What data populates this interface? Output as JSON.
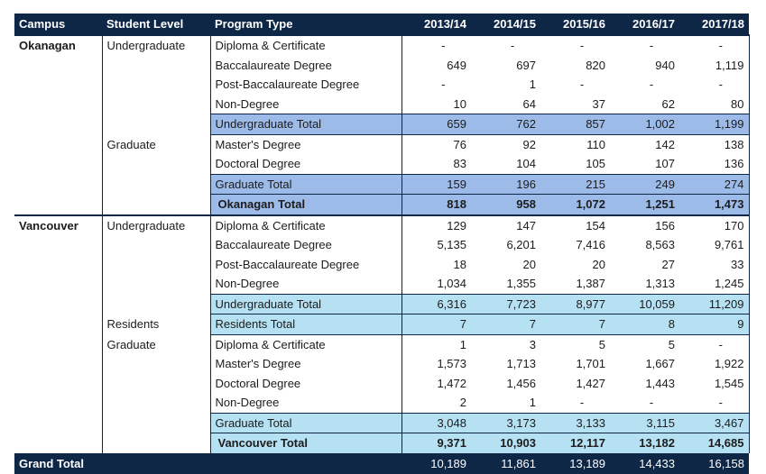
{
  "headers": [
    "Campus",
    "Student Level",
    "Program Type",
    "2013/14",
    "2014/15",
    "2015/16",
    "2016/17",
    "2017/18"
  ],
  "rows": [
    {
      "campus": "Okanagan",
      "level": "Undergraduate",
      "program": "Diploma & Certificate",
      "values": [
        "-",
        "-",
        "-",
        "-",
        "-"
      ],
      "kind": "data",
      "group": "ok",
      "campusStart": true
    },
    {
      "campus": "",
      "level": "",
      "program": "Baccalaureate Degree",
      "values": [
        "649",
        "697",
        "820",
        "940",
        "1,119"
      ],
      "kind": "data",
      "group": "ok"
    },
    {
      "campus": "",
      "level": "",
      "program": "Post-Baccalaureate Degree",
      "values": [
        "-",
        "1",
        "-",
        "-",
        "-"
      ],
      "kind": "data",
      "group": "ok"
    },
    {
      "campus": "",
      "level": "",
      "program": "Non-Degree",
      "values": [
        "10",
        "64",
        "37",
        "62",
        "80"
      ],
      "kind": "data",
      "group": "ok"
    },
    {
      "campus": "",
      "level": "",
      "program": "Undergraduate Total",
      "values": [
        "659",
        "762",
        "857",
        "1,002",
        "1,199"
      ],
      "kind": "subtotal",
      "group": "ok"
    },
    {
      "campus": "",
      "level": "Graduate",
      "program": "Master's Degree",
      "values": [
        "76",
        "92",
        "110",
        "142",
        "138"
      ],
      "kind": "data",
      "group": "ok"
    },
    {
      "campus": "",
      "level": "",
      "program": "Doctoral Degree",
      "values": [
        "83",
        "104",
        "105",
        "107",
        "136"
      ],
      "kind": "data",
      "group": "ok"
    },
    {
      "campus": "",
      "level": "",
      "program": "Graduate Total",
      "values": [
        "159",
        "196",
        "215",
        "249",
        "274"
      ],
      "kind": "subtotal",
      "group": "ok"
    },
    {
      "campus": "",
      "level": "",
      "program": "Okanagan Total",
      "values": [
        "818",
        "958",
        "1,072",
        "1,251",
        "1,473"
      ],
      "kind": "ctotal",
      "group": "ok"
    },
    {
      "campus": "Vancouver",
      "level": "Undergraduate",
      "program": "Diploma & Certificate",
      "values": [
        "129",
        "147",
        "154",
        "156",
        "170"
      ],
      "kind": "data",
      "group": "van",
      "campusStart": true
    },
    {
      "campus": "",
      "level": "",
      "program": "Baccalaureate Degree",
      "values": [
        "5,135",
        "6,201",
        "7,416",
        "8,563",
        "9,761"
      ],
      "kind": "data",
      "group": "van"
    },
    {
      "campus": "",
      "level": "",
      "program": "Post-Baccalaureate Degree",
      "values": [
        "18",
        "20",
        "20",
        "27",
        "33"
      ],
      "kind": "data",
      "group": "van"
    },
    {
      "campus": "",
      "level": "",
      "program": "Non-Degree",
      "values": [
        "1,034",
        "1,355",
        "1,387",
        "1,313",
        "1,245"
      ],
      "kind": "data",
      "group": "van"
    },
    {
      "campus": "",
      "level": "",
      "program": "Undergraduate Total",
      "values": [
        "6,316",
        "7,723",
        "8,977",
        "10,059",
        "11,209"
      ],
      "kind": "subtotal",
      "group": "van"
    },
    {
      "campus": "",
      "level": "Residents",
      "program": "Residents Total",
      "values": [
        "7",
        "7",
        "7",
        "8",
        "9"
      ],
      "kind": "subtotal",
      "group": "van"
    },
    {
      "campus": "",
      "level": "Graduate",
      "program": "Diploma & Certificate",
      "values": [
        "1",
        "3",
        "5",
        "5",
        "-"
      ],
      "kind": "data",
      "group": "van"
    },
    {
      "campus": "",
      "level": "",
      "program": "Master's Degree",
      "values": [
        "1,573",
        "1,713",
        "1,701",
        "1,667",
        "1,922"
      ],
      "kind": "data",
      "group": "van"
    },
    {
      "campus": "",
      "level": "",
      "program": "Doctoral Degree",
      "values": [
        "1,472",
        "1,456",
        "1,427",
        "1,443",
        "1,545"
      ],
      "kind": "data",
      "group": "van"
    },
    {
      "campus": "",
      "level": "",
      "program": "Non-Degree",
      "values": [
        "2",
        "1",
        "-",
        "-",
        "-"
      ],
      "kind": "data",
      "group": "van"
    },
    {
      "campus": "",
      "level": "",
      "program": "Graduate Total",
      "values": [
        "3,048",
        "3,173",
        "3,133",
        "3,115",
        "3,467"
      ],
      "kind": "subtotal",
      "group": "van"
    },
    {
      "campus": "",
      "level": "",
      "program": "Vancouver Total",
      "values": [
        "9,371",
        "10,903",
        "12,117",
        "13,182",
        "14,685"
      ],
      "kind": "ctotal",
      "group": "van"
    }
  ],
  "grand_total": {
    "label": "Grand Total",
    "values": [
      "10,189",
      "11,861",
      "13,189",
      "14,433",
      "16,158"
    ]
  },
  "colors": {
    "header": "#0f2747",
    "okanagan_shade": "#9dbbe8",
    "vancouver_shade": "#b5e1f2"
  }
}
